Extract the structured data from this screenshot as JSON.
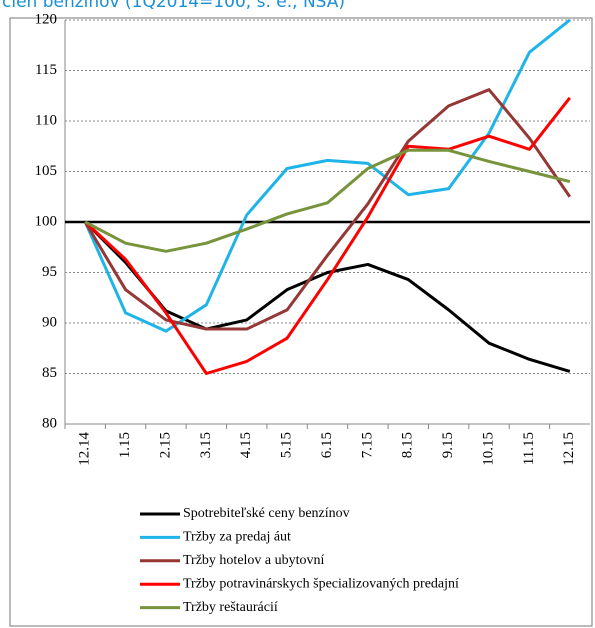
{
  "chart_data": {
    "type": "line",
    "title": "cien benzínov (1Q2014=100, s. e., NSA)",
    "categories": [
      "12.14",
      "1.15",
      "2.15",
      "3.15",
      "4.15",
      "5.15",
      "6.15",
      "7.15",
      "8.15",
      "9.15",
      "10.15",
      "11.15",
      "12.15"
    ],
    "series": [
      {
        "name": "Spotrebiteľské ceny benzínov",
        "color": "#000000",
        "values": [
          100,
          96,
          91.2,
          89.4,
          90.3,
          93.3,
          95,
          95.8,
          94.3,
          91.3,
          88,
          86.4,
          85.2
        ]
      },
      {
        "name": "Tržby za predaj áut",
        "color": "#1fb4e8",
        "values": [
          100,
          91,
          89.2,
          91.8,
          100.7,
          105.3,
          106.1,
          105.8,
          102.7,
          103.3,
          108.8,
          116.8,
          120
        ]
      },
      {
        "name": "Tržby hotelov a ubytovní",
        "color": "#953735",
        "values": [
          100,
          93.3,
          90.3,
          89.4,
          89.4,
          91.3,
          96.7,
          101.8,
          108,
          111.5,
          113.1,
          108.3,
          102.5
        ]
      },
      {
        "name": "Tržby potravinárskych špecializovaných predajní",
        "color": "#ff0000",
        "values": [
          100,
          96.3,
          91,
          85,
          86.2,
          88.5,
          94.3,
          100.5,
          107.5,
          107.2,
          108.5,
          107.2,
          112.3
        ]
      },
      {
        "name": "Tržby reštaurácií",
        "color": "#77933c",
        "values": [
          100,
          97.9,
          97.1,
          97.9,
          99.3,
          100.8,
          101.9,
          105.3,
          107.1,
          107.1,
          106,
          105,
          104
        ]
      }
    ],
    "ylim": [
      80,
      120
    ],
    "yticks": [
      80,
      85,
      90,
      95,
      100,
      105,
      110,
      115,
      120
    ],
    "reference_line": 100,
    "grid": true
  }
}
